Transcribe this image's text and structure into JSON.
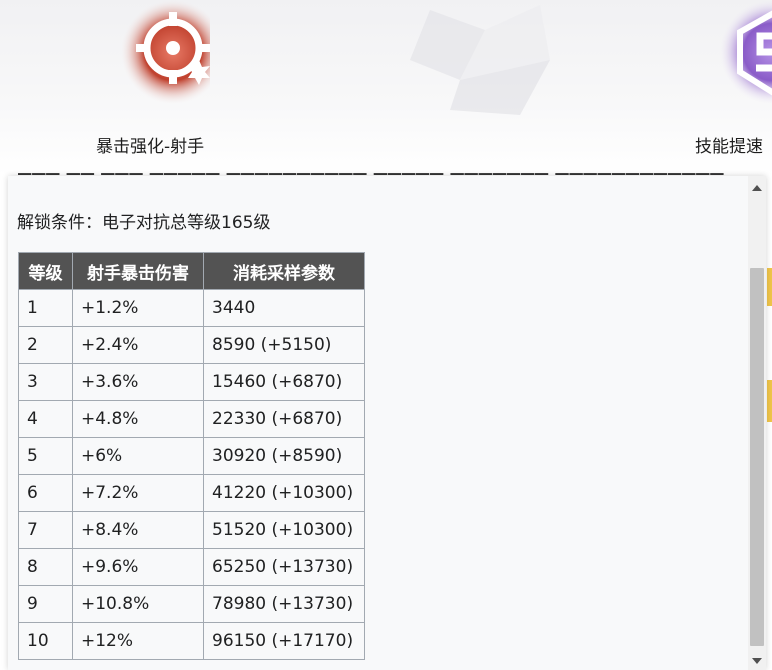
{
  "skills": [
    {
      "icon": "crit-target-icon",
      "label": "暴击强化-射手",
      "color": "#c0412e"
    },
    {
      "icon": "speed-s-icon",
      "label": "技能提速",
      "color": "#8a5cc8"
    }
  ],
  "popup": {
    "unlock_condition": "解锁条件：电子对抗总等级165级",
    "table": {
      "headers": [
        "等级",
        "射手暴击伤害",
        "消耗采样参数"
      ],
      "rows": [
        [
          "1",
          "+1.2%",
          "3440"
        ],
        [
          "2",
          "+2.4%",
          "8590 (+5150)"
        ],
        [
          "3",
          "+3.6%",
          "15460 (+6870)"
        ],
        [
          "4",
          "+4.8%",
          "22330 (+6870)"
        ],
        [
          "5",
          "+6%",
          "30920 (+8590)"
        ],
        [
          "6",
          "+7.2%",
          "41220 (+10300)"
        ],
        [
          "7",
          "+8.4%",
          "51520 (+10300)"
        ],
        [
          "8",
          "+9.6%",
          "65250 (+13730)"
        ],
        [
          "9",
          "+10.8%",
          "78980 (+13730)"
        ],
        [
          "10",
          "+12%",
          "96150 (+17170)"
        ]
      ]
    }
  }
}
